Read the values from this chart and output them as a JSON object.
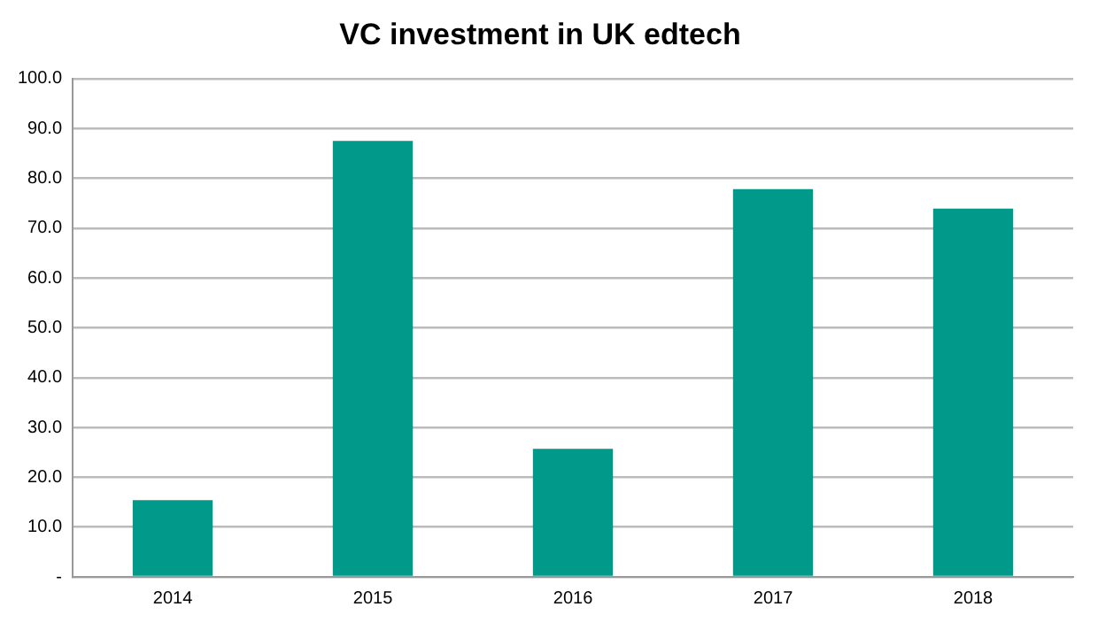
{
  "chart_data": {
    "type": "bar",
    "title": "VC investment in UK edtech",
    "categories": [
      "2014",
      "2015",
      "2016",
      "2017",
      "2018"
    ],
    "values": [
      15.4,
      87.5,
      25.7,
      77.8,
      73.9
    ],
    "color": "#00998a",
    "ylim": [
      0,
      100
    ],
    "yticks": [
      {
        "value": 0,
        "label": "-"
      },
      {
        "value": 10,
        "label": "10.0"
      },
      {
        "value": 20,
        "label": "20.0"
      },
      {
        "value": 30,
        "label": "30.0"
      },
      {
        "value": 40,
        "label": "40.0"
      },
      {
        "value": 50,
        "label": "50.0"
      },
      {
        "value": 60,
        "label": "60.0"
      },
      {
        "value": 70,
        "label": "70.0"
      },
      {
        "value": 80,
        "label": "80.0"
      },
      {
        "value": 90,
        "label": "90.0"
      },
      {
        "value": 100,
        "label": "100.0"
      }
    ],
    "grid": "y",
    "legend": false
  }
}
